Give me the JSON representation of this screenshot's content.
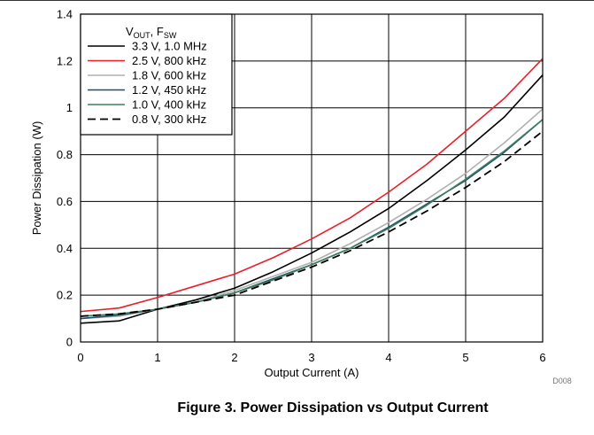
{
  "figure_caption": "Figure 3. Power Dissipation vs Output Current",
  "chart_data": {
    "type": "line",
    "title": "",
    "xlabel": "Output Current (A)",
    "ylabel": "Power Dissipation (W)",
    "xlim": [
      0,
      6
    ],
    "ylim": [
      0,
      1.4
    ],
    "x_ticks": [
      "0",
      "1",
      "2",
      "3",
      "4",
      "5",
      "6"
    ],
    "y_ticks": [
      "0",
      "0.2",
      "0.4",
      "0.6",
      "0.8",
      "1",
      "1.2",
      "1.4"
    ],
    "grid": true,
    "legend_position": "top-left",
    "legend_title": {
      "v_main": "V",
      "v_sub": "OUT",
      "sep": ", F",
      "f_sub": "SW"
    },
    "figure_id": "D008",
    "x": [
      0,
      0.5,
      1,
      1.5,
      2,
      2.5,
      3,
      3.5,
      4,
      4.5,
      5,
      5.5,
      6
    ],
    "series": [
      {
        "name": "3.3 V, 1.0 MHz",
        "color": "#000000",
        "dash": "solid",
        "values": [
          0.08,
          0.09,
          0.14,
          0.18,
          0.23,
          0.3,
          0.38,
          0.47,
          0.57,
          0.69,
          0.82,
          0.96,
          1.14
        ]
      },
      {
        "name": "2.5 V, 800 kHz",
        "color": "#e8202a",
        "dash": "solid",
        "values": [
          0.13,
          0.145,
          0.19,
          0.24,
          0.29,
          0.36,
          0.44,
          0.53,
          0.64,
          0.76,
          0.9,
          1.04,
          1.21
        ]
      },
      {
        "name": "1.8 V, 600 kHz",
        "color": "#b0b0b0",
        "dash": "solid",
        "values": [
          0.1,
          0.11,
          0.14,
          0.17,
          0.22,
          0.28,
          0.34,
          0.42,
          0.51,
          0.61,
          0.72,
          0.85,
          0.995
        ]
      },
      {
        "name": "1.2 V, 450 kHz",
        "color": "#1f4e6b",
        "dash": "solid",
        "values": [
          0.1,
          0.115,
          0.14,
          0.17,
          0.21,
          0.27,
          0.33,
          0.4,
          0.49,
          0.59,
          0.69,
          0.81,
          0.95
        ]
      },
      {
        "name": "1.0 V, 400 kHz",
        "color": "#3f7e5c",
        "dash": "solid",
        "values": [
          0.11,
          0.12,
          0.14,
          0.17,
          0.21,
          0.265,
          0.33,
          0.4,
          0.485,
          0.585,
          0.695,
          0.815,
          0.95
        ]
      },
      {
        "name": "0.8 V, 300 kHz",
        "color": "#000000",
        "dash": "dashed",
        "values": [
          0.11,
          0.12,
          0.14,
          0.17,
          0.2,
          0.26,
          0.32,
          0.39,
          0.47,
          0.56,
          0.66,
          0.77,
          0.9
        ]
      }
    ]
  }
}
